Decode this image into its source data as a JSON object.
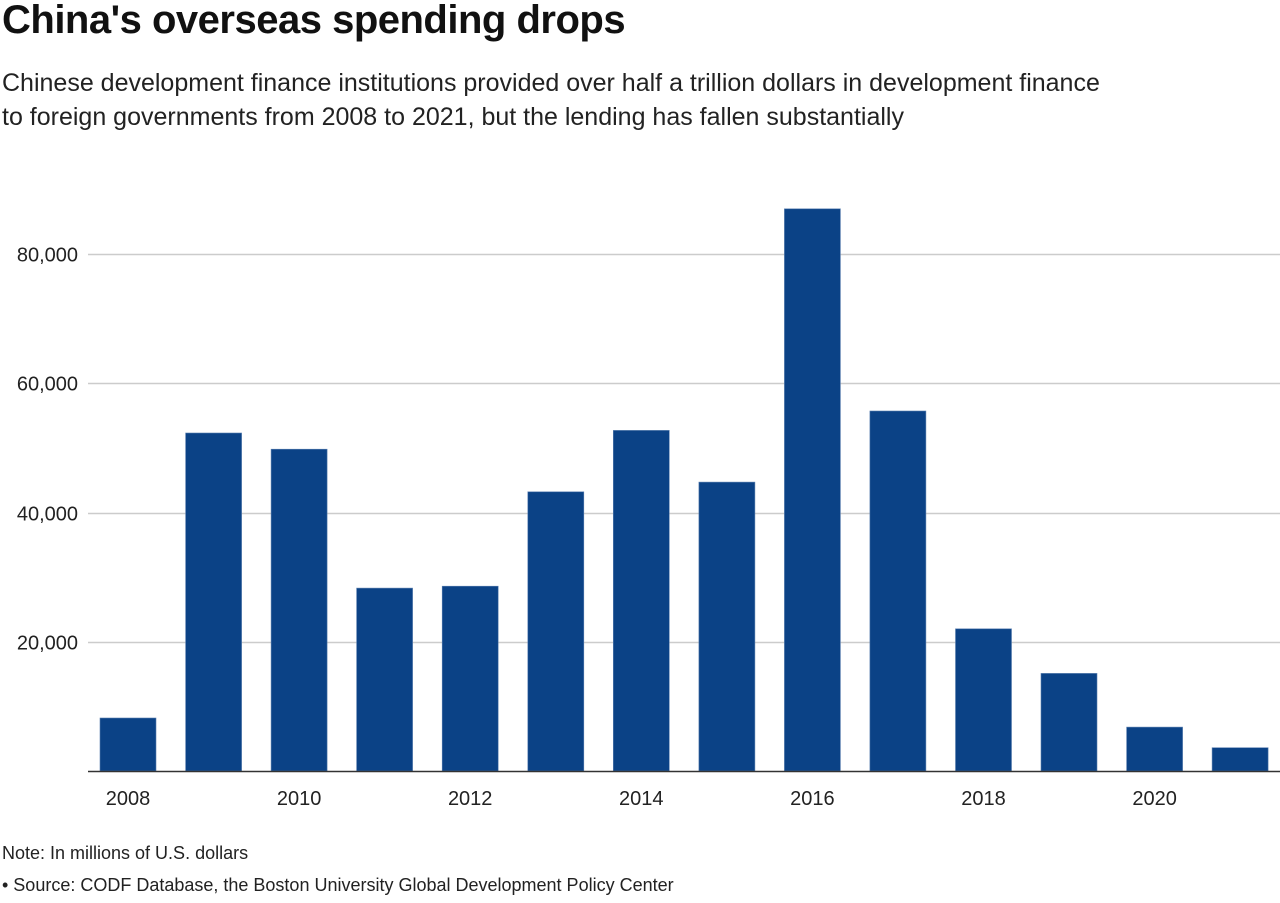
{
  "header": {
    "title": "China's overseas spending drops",
    "subtitle_line1": "Chinese development finance institutions provided over half a trillion dollars in development finance",
    "subtitle_line2": "to foreign governments from 2008 to 2021, but the lending has fallen substantially"
  },
  "footer": {
    "note": "Note: In millions of U.S. dollars",
    "source": "• Source: CODF Database, the Boston University Global Development Policy Center"
  },
  "colors": {
    "bar": "#0b4286",
    "grid": "#cccccc",
    "axis": "#333333"
  },
  "chart_data": {
    "type": "bar",
    "title": "China's overseas spending drops",
    "subtitle": "Chinese development finance institutions provided over half a trillion dollars in development finance to foreign governments from 2008 to 2021, but the lending has fallen substantially",
    "xlabel": "",
    "ylabel": "",
    "units": "millions of U.S. dollars",
    "categories": [
      "2008",
      "2009",
      "2010",
      "2011",
      "2012",
      "2013",
      "2014",
      "2015",
      "2016",
      "2017",
      "2018",
      "2019",
      "2020",
      "2021"
    ],
    "values": [
      8200,
      52300,
      49800,
      28300,
      28600,
      43200,
      52700,
      44700,
      87000,
      55700,
      22000,
      15100,
      6800,
      3600
    ],
    "x_tick_labels": [
      "2008",
      "2010",
      "2012",
      "2014",
      "2016",
      "2018",
      "2020"
    ],
    "y_ticks": [
      20000,
      40000,
      60000,
      80000
    ],
    "y_tick_labels": [
      "20,000",
      "40,000",
      "60,000",
      "80,000"
    ],
    "ylim": [
      0,
      90000
    ],
    "grid": true,
    "legend": "none"
  }
}
